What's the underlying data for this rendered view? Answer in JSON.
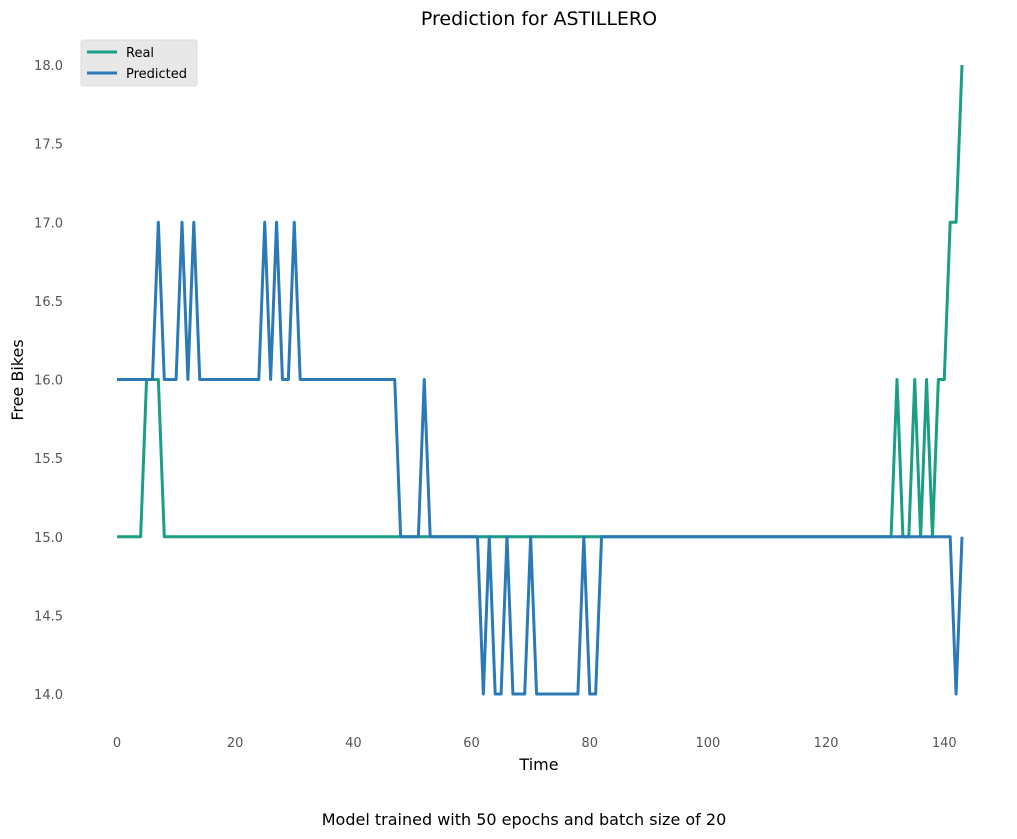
{
  "chart_data": {
    "type": "line",
    "title": "Prediction for ASTILLERO",
    "xlabel": "Time",
    "ylabel": "Free Bikes",
    "caption": "Model trained with 50 epochs and batch size of 20",
    "xlim": [
      -2,
      145
    ],
    "ylim": [
      13.8,
      18.1
    ],
    "xticks": [
      0,
      20,
      40,
      60,
      80,
      100,
      120,
      140
    ],
    "yticks": [
      14.0,
      14.5,
      15.0,
      15.5,
      16.0,
      16.5,
      17.0,
      17.5,
      18.0
    ],
    "grid": false,
    "legend_position": "top-left",
    "series": [
      {
        "name": "Real",
        "color": "#1a9e84",
        "points": [
          [
            0,
            15
          ],
          [
            4,
            15
          ],
          [
            5,
            16
          ],
          [
            7,
            16
          ],
          [
            8,
            15
          ],
          [
            131,
            15
          ],
          [
            132,
            16
          ],
          [
            133,
            15
          ],
          [
            134,
            15
          ],
          [
            135,
            16
          ],
          [
            136,
            15
          ],
          [
            137,
            16
          ],
          [
            138,
            15
          ],
          [
            139,
            16
          ],
          [
            140,
            16
          ],
          [
            141,
            17
          ],
          [
            142,
            17
          ],
          [
            143,
            18
          ]
        ]
      },
      {
        "name": "Predicted",
        "color": "#2a7ab8",
        "points": [
          [
            0,
            16
          ],
          [
            6,
            16
          ],
          [
            7,
            17
          ],
          [
            8,
            16
          ],
          [
            10,
            16
          ],
          [
            11,
            17
          ],
          [
            12,
            16
          ],
          [
            13,
            17
          ],
          [
            14,
            16
          ],
          [
            24,
            16
          ],
          [
            25,
            17
          ],
          [
            26,
            16
          ],
          [
            27,
            17
          ],
          [
            28,
            16
          ],
          [
            29,
            16
          ],
          [
            30,
            17
          ],
          [
            31,
            16
          ],
          [
            47,
            16
          ],
          [
            48,
            15
          ],
          [
            51,
            15
          ],
          [
            52,
            16
          ],
          [
            53,
            15
          ],
          [
            61,
            15
          ],
          [
            62,
            14
          ],
          [
            63,
            15
          ],
          [
            64,
            14
          ],
          [
            65,
            14
          ],
          [
            66,
            15
          ],
          [
            67,
            14
          ],
          [
            69,
            14
          ],
          [
            70,
            15
          ],
          [
            71,
            14
          ],
          [
            78,
            14
          ],
          [
            79,
            15
          ],
          [
            80,
            14
          ],
          [
            81,
            14
          ],
          [
            82,
            15
          ],
          [
            141,
            15
          ],
          [
            142,
            14
          ],
          [
            143,
            15
          ]
        ]
      }
    ]
  }
}
